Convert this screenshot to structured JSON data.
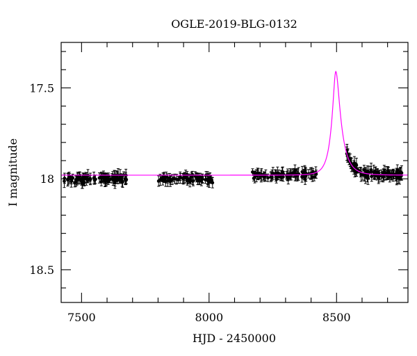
{
  "chart_data": {
    "type": "scatter",
    "title": "OGLE-2019-BLG-0132",
    "xlabel": "HJD - 2450000",
    "ylabel": "I magnitude",
    "xlim": [
      7420,
      8780
    ],
    "ylim": [
      18.68,
      17.25
    ],
    "y_inverted": true,
    "grid": false,
    "x_ticks": [
      7500,
      8000,
      8500
    ],
    "x_tick_labels": [
      "7500",
      "8000",
      "8500"
    ],
    "y_ticks": [
      17.5,
      18,
      18.5
    ],
    "y_tick_labels": [
      "17.5",
      "18",
      "18.5"
    ],
    "colors": {
      "model": "#ff00ff",
      "data": "#000000"
    },
    "model": {
      "name": "",
      "baseline_mag": 17.98,
      "peak_time": 8497,
      "peak_mag": 17.41,
      "tE_rise": 32,
      "tE_fall": 42
    },
    "series": [
      {
        "type": "scatter_errorbar",
        "segments": [
          {
            "t_range": [
              7430,
              7680
            ],
            "n": 90,
            "mag_mean": 18.0,
            "mag_scatter": 0.022,
            "err_range": [
              0.015,
              0.035
            ]
          },
          {
            "t_range": [
              7800,
              8020
            ],
            "n": 70,
            "mag_mean": 18.0,
            "mag_scatter": 0.02,
            "err_range": [
              0.015,
              0.032
            ]
          },
          {
            "t_range": [
              8170,
              8420
            ],
            "n": 85,
            "follow_model": true,
            "mag_scatter": 0.02,
            "err_range": [
              0.015,
              0.035
            ]
          },
          {
            "t_range": [
              8540,
              8760
            ],
            "n": 95,
            "follow_model": true,
            "mag_scatter": 0.022,
            "err_range": [
              0.015,
              0.04
            ]
          }
        ]
      }
    ]
  }
}
